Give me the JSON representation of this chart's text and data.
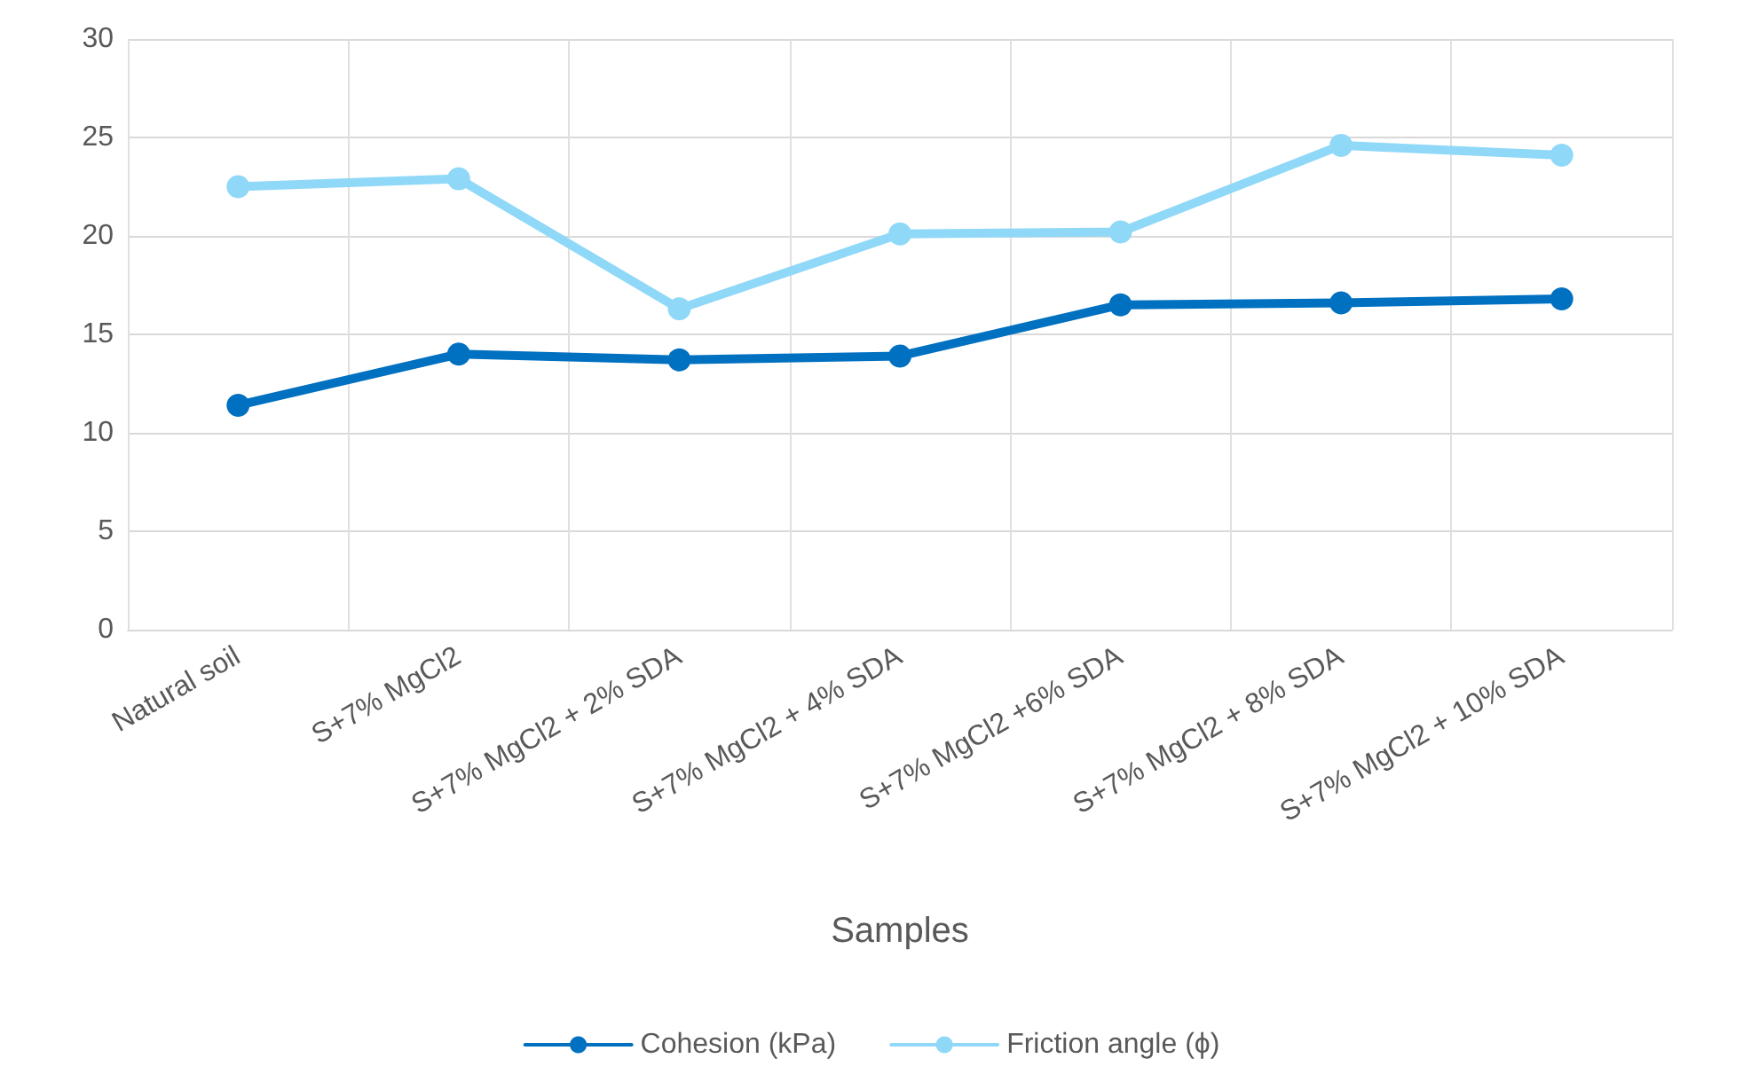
{
  "chart_data": {
    "type": "line",
    "xlabel": "Samples",
    "categories": [
      "Natural soil",
      "S+7% MgCl2",
      "S+7% MgCl2 + 2% SDA",
      "S+7% MgCl2 + 4% SDA",
      "S+7% MgCl2 +6% SDA",
      "S+7% MgCl2 + 8% SDA",
      "S+7% MgCl2 + 10% SDA"
    ],
    "series": [
      {
        "name": "Cohesion (kPa)",
        "color": "#0070c0",
        "values": [
          11.4,
          14.0,
          13.7,
          13.9,
          16.5,
          16.6,
          16.8
        ]
      },
      {
        "name": "Friction angle (ϕ)",
        "color": "#8fd8f8",
        "values": [
          22.5,
          22.9,
          16.3,
          20.1,
          20.2,
          24.6,
          24.1
        ]
      }
    ],
    "ylim": [
      0,
      30
    ],
    "yticks": [
      0,
      5,
      10,
      15,
      20,
      25,
      30
    ],
    "grid": true,
    "legend": "bottom",
    "marker": "circle",
    "line_style": "solid"
  }
}
